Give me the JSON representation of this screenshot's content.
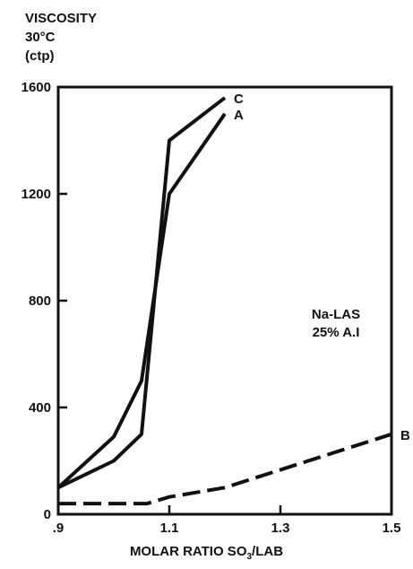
{
  "chart_data": {
    "type": "line",
    "title": "",
    "ylabel_lines": [
      "VISCOSITY",
      "30°C",
      "(ctp)"
    ],
    "xlabel": {
      "prefix": "MOLAR RATIO SO",
      "subscript": "3",
      "suffix": "/LAB"
    },
    "xlim": [
      0.9,
      1.5
    ],
    "ylim": [
      0,
      1600
    ],
    "x_ticks": [
      0.9,
      1.1,
      1.3,
      1.5
    ],
    "x_tick_labels": [
      ".9",
      "1.1",
      "1.3",
      "1.5"
    ],
    "y_ticks": [
      0,
      400,
      800,
      1200,
      1600
    ],
    "y_tick_labels": [
      "0",
      "400",
      "800",
      "1200",
      "1600"
    ],
    "grid": false,
    "annotation_lines": [
      "Na-LAS",
      "25% A.I"
    ],
    "annotation_position": {
      "x": 1.4,
      "y": 700
    },
    "series": [
      {
        "label": "A",
        "style": "solid",
        "x": [
          0.9,
          1.0,
          1.05,
          1.1,
          1.2
        ],
        "y": [
          100,
          290,
          500,
          1200,
          1500
        ]
      },
      {
        "label": "B",
        "style": "dashed",
        "x": [
          0.9,
          1.0,
          1.06,
          1.1,
          1.2,
          1.5
        ],
        "y": [
          40,
          40,
          40,
          65,
          100,
          300
        ]
      },
      {
        "label": "C",
        "style": "solid",
        "x": [
          0.9,
          1.0,
          1.05,
          1.1,
          1.2
        ],
        "y": [
          100,
          200,
          300,
          1400,
          1560
        ]
      }
    ]
  }
}
